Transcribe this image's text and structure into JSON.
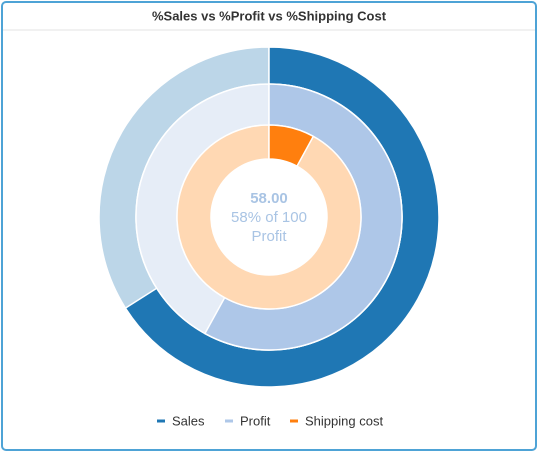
{
  "chart_data": {
    "type": "donut",
    "title": "%Sales vs %Profit vs %Shipping Cost",
    "ylim": [
      0,
      100
    ],
    "series": [
      {
        "name": "Sales",
        "color": "#1f77b4",
        "track_color": "#bcd6e8",
        "values": [
          66
        ]
      },
      {
        "name": "Profit",
        "color": "#aec7e8",
        "track_color": "#e6edf7",
        "values": [
          58
        ]
      },
      {
        "name": "Shipping cost",
        "color": "#ff7f0e",
        "track_color": "#ffd8b3",
        "values": [
          8
        ]
      }
    ],
    "center_lines": [
      "58.00",
      "58% of 100",
      "Profit"
    ],
    "legend": "bottom"
  }
}
